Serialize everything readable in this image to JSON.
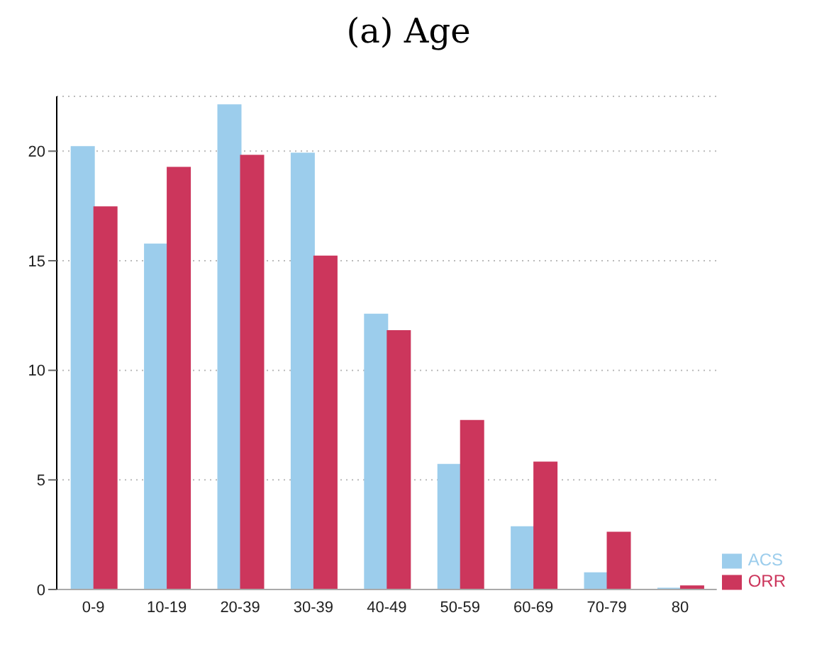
{
  "chart_data": {
    "type": "bar",
    "title": "(a) Age",
    "categories": [
      "0-9",
      "10-19",
      "20-39",
      "30-39",
      "40-49",
      "50-59",
      "60-69",
      "70-79",
      "80"
    ],
    "series": [
      {
        "name": "ACS",
        "color": "#9ccdec",
        "values": [
          20.2,
          15.75,
          22.1,
          19.9,
          12.55,
          5.7,
          2.85,
          0.75,
          0.05
        ]
      },
      {
        "name": "ORR",
        "color": "#cc365c",
        "values": [
          17.45,
          19.25,
          19.8,
          15.2,
          11.8,
          7.7,
          5.8,
          2.6,
          0.15
        ]
      }
    ],
    "ylim": [
      0,
      22.5
    ],
    "yticks": [
      0,
      5,
      10,
      15,
      20
    ],
    "grid": "y",
    "legend": "bottom right"
  }
}
